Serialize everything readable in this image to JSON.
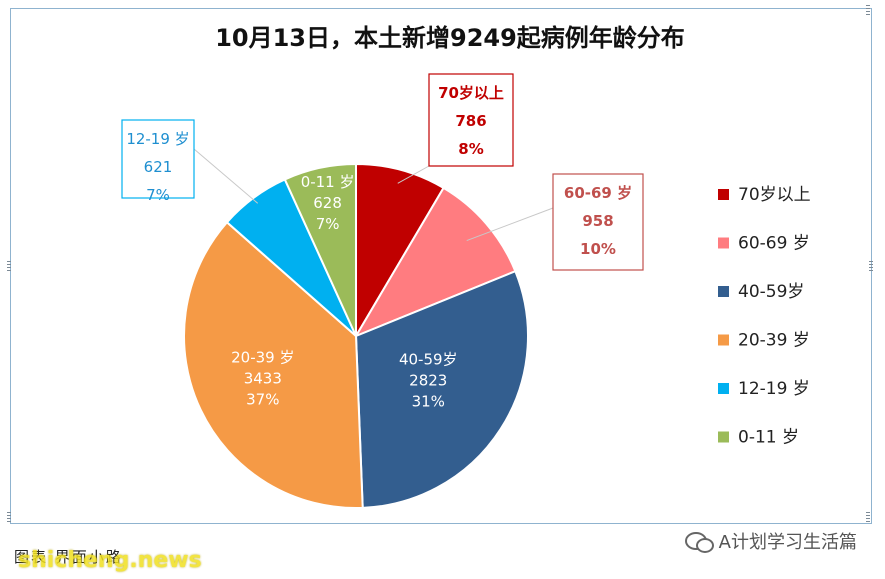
{
  "chart_data": {
    "type": "pie",
    "title": "10月13日，本土新增9249起病例年龄分布",
    "slices": [
      {
        "label": "70岁以上",
        "callout_label": "70岁以上",
        "value": 786,
        "percent": "8%",
        "color": "#C00000"
      },
      {
        "label": "60-69 岁",
        "callout_label": "60-69 岁",
        "value": 958,
        "percent": "10%",
        "color": "#FF7C80"
      },
      {
        "label": "40-59岁",
        "callout_label": "40-59岁",
        "value": 2823,
        "percent": "31%",
        "color": "#335E8F"
      },
      {
        "label": "20-39 岁",
        "callout_label": "20-39 岁",
        "value": 3433,
        "percent": "37%",
        "color": "#F59A46"
      },
      {
        "label": "12-19 岁",
        "callout_label": "12-19 岁",
        "value": 621,
        "percent": "7%",
        "color": "#00B0F0"
      },
      {
        "label": "0-11 岁",
        "callout_label": "0-11 岁",
        "value": 628,
        "percent": "7%",
        "color": "#9BBB59"
      }
    ],
    "legend_position": "right"
  },
  "footer": {
    "caption": "图表 界面小路",
    "watermark": "shicheng.news",
    "account": "A计划学习生活篇"
  }
}
